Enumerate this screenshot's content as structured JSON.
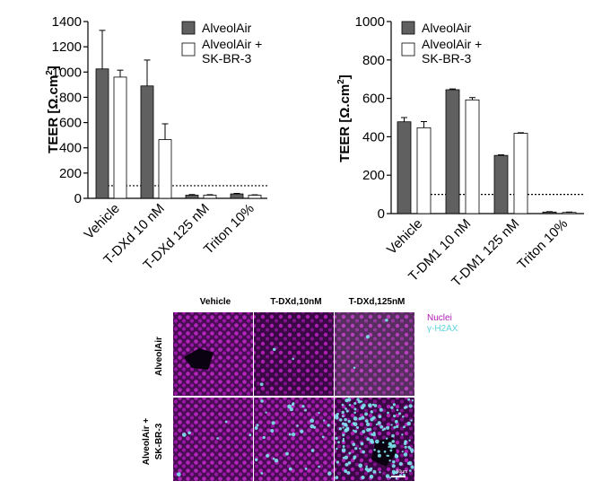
{
  "chart_data": [
    {
      "type": "bar",
      "panel": "left",
      "ylabel": "TEER [Ω.cm2]",
      "ylim": [
        0,
        1400
      ],
      "yticks": [
        0,
        200,
        400,
        600,
        800,
        1000,
        1200,
        1400
      ],
      "categories": [
        "Vehicle",
        "T-DXd 10 nM",
        "T-DXd 125 nM",
        "Triton 10%"
      ],
      "series": [
        {
          "name": "AlveolAir",
          "color": "#606060",
          "values": [
            1025,
            890,
            25,
            35
          ],
          "errors": [
            305,
            205,
            5,
            4
          ]
        },
        {
          "name": "AlveolAir + SK-BR-3",
          "color": "#ffffff",
          "values": [
            960,
            465,
            25,
            25
          ],
          "errors": [
            55,
            125,
            4,
            3
          ]
        }
      ],
      "threshold": 100,
      "legend": {
        "position": "top-right",
        "entries": [
          "AlveolAir",
          "AlveolAir +",
          "SK-BR-3"
        ]
      }
    },
    {
      "type": "bar",
      "panel": "right",
      "ylabel": "TEER [Ω.cm2]",
      "ylim": [
        0,
        1000
      ],
      "yticks": [
        0,
        200,
        400,
        600,
        800,
        1000
      ],
      "categories": [
        "Vehicle",
        "T-DM1 10 nM",
        "T-DM1 125 nM",
        "Triton 10%"
      ],
      "series": [
        {
          "name": "AlveolAir",
          "color": "#606060",
          "values": [
            478,
            645,
            303,
            8
          ],
          "errors": [
            22,
            4,
            3,
            2
          ]
        },
        {
          "name": "AlveolAir + SK-BR-3",
          "color": "#ffffff",
          "values": [
            447,
            592,
            418,
            6
          ],
          "errors": [
            32,
            12,
            3,
            2
          ]
        }
      ],
      "threshold": 100,
      "legend": {
        "position": "top-left",
        "entries": [
          "AlveolAir",
          "AlveolAir +",
          "SK-BR-3"
        ]
      }
    }
  ],
  "micrograph": {
    "column_headers": [
      "Vehicle",
      "T-DXd,10nM",
      "T-DXd,125nM"
    ],
    "row_labels": [
      "AlveolAir",
      "AlveolAir +",
      "SK-BR-3"
    ],
    "legend": [
      "Nuclei",
      "γ-H2AX"
    ],
    "nuclei_color": "#a01aa8",
    "h2ax_color": "#7fe6f0",
    "h2ax_density": [
      [
        0.0,
        0.01,
        0.01
      ],
      [
        0.02,
        0.12,
        0.55
      ]
    ],
    "scale_bar": "50µm"
  }
}
